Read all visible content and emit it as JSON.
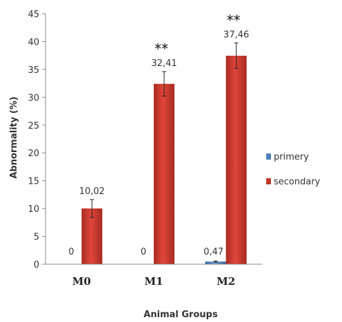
{
  "chart_data": {
    "type": "bar",
    "categories": [
      "M0",
      "M1",
      "M2"
    ],
    "xlabel": "Animal Groups",
    "ylabel": "Abnormality (%)",
    "ylim": [
      0,
      45
    ],
    "yticks": [
      "0",
      "5",
      "10",
      "15",
      "20",
      "25",
      "30",
      "35",
      "40",
      "45"
    ],
    "grid": false,
    "legend_position": "right",
    "series": [
      {
        "name": "primery",
        "color": "#4f81bd",
        "values": [
          0,
          0,
          0.47
        ],
        "labels": [
          "0",
          "0",
          "0,47"
        ],
        "errors": [
          0,
          0,
          0.1
        ]
      },
      {
        "name": "secondary",
        "color": "#c0392b",
        "values": [
          10.02,
          32.41,
          37.46
        ],
        "labels": [
          "10,02",
          "32,41",
          "37,46"
        ],
        "errors": [
          1.6,
          2.2,
          2.3
        ]
      }
    ],
    "annotations": [
      {
        "category": "M1",
        "text": "**"
      },
      {
        "category": "M2",
        "text": "**"
      }
    ]
  }
}
